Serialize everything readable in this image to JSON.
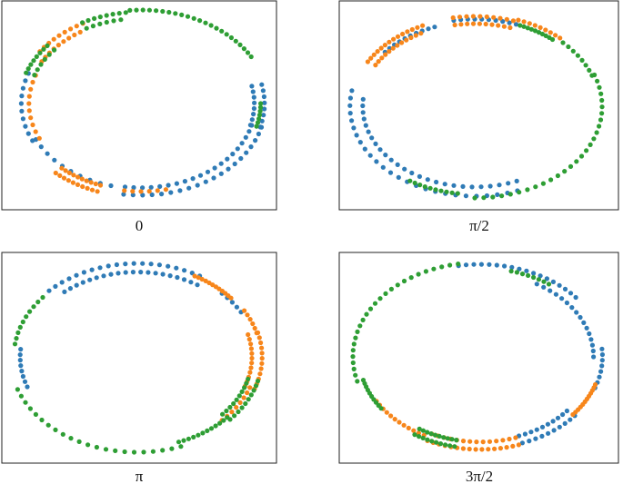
{
  "colors": {
    "blue": "#2f7bb6",
    "orange": "#f7861b",
    "green": "#2e9e34",
    "frame": "#222222"
  },
  "chart_data": [
    {
      "type": "scatter",
      "label": "0",
      "axes": "hidden",
      "series": [
        {
          "color": "blue",
          "arcs": [
            {
              "from": 160,
              "to": 205,
              "n": 10,
              "dr": -0.06,
              "dt": 0
            },
            {
              "from": 205,
              "to": 255,
              "n": 10,
              "dr": -0.09,
              "dt": 0
            },
            {
              "from": 262,
              "to": 345,
              "n": 20,
              "dr": -0.02,
              "dt": 0
            },
            {
              "from": 262,
              "to": 345,
              "n": 20,
              "dr": -0.1,
              "dt": 0
            },
            {
              "from": 345,
              "to": 372,
              "n": 8,
              "dr": -0.03,
              "dt": 0
            },
            {
              "from": 345,
              "to": 372,
              "n": 8,
              "dr": -0.11,
              "dt": 0
            }
          ]
        },
        {
          "color": "orange",
          "arcs": [
            {
              "from": 118,
              "to": 145,
              "n": 9,
              "dr": -0.03,
              "dt": 0
            },
            {
              "from": 122,
              "to": 150,
              "n": 9,
              "dr": -0.1,
              "dt": 0
            },
            {
              "from": 160,
              "to": 205,
              "n": 10,
              "dr": -0.12,
              "dt": 0
            },
            {
              "from": 228,
              "to": 250,
              "n": 10,
              "dr": 0.0,
              "dt": 0
            },
            {
              "from": 228,
              "to": 250,
              "n": 10,
              "dr": -0.07,
              "dt": 0
            },
            {
              "from": 262,
              "to": 282,
              "n": 6,
              "dr": -0.06,
              "dt": 0
            }
          ]
        },
        {
          "color": "green",
          "arcs": [
            {
              "from": 30,
              "to": 95,
              "n": 23,
              "dr": 0.0,
              "dt": 0
            },
            {
              "from": 97,
              "to": 118,
              "n": 8,
              "dr": -0.02,
              "dt": 0
            },
            {
              "from": 100,
              "to": 118,
              "n": 6,
              "dr": -0.09,
              "dt": 0
            },
            {
              "from": 140,
              "to": 160,
              "n": 8,
              "dr": -0.04,
              "dt": 0
            },
            {
              "from": 140,
              "to": 160,
              "n": 6,
              "dr": -0.11,
              "dt": 0
            },
            {
              "from": 345,
              "to": 360,
              "n": 7,
              "dr": -0.06,
              "dt": 0
            }
          ]
        }
      ]
    },
    {
      "type": "scatter",
      "label": "π/2",
      "axes": "hidden",
      "series": [
        {
          "color": "blue",
          "arcs": [
            {
              "from": 70,
              "to": 100,
              "n": 10,
              "dr": -0.05,
              "dt": 0
            },
            {
              "from": 110,
              "to": 140,
              "n": 10,
              "dr": -0.08,
              "dt": 0
            },
            {
              "from": 170,
              "to": 290,
              "n": 26,
              "dr": -0.02,
              "dt": 0
            },
            {
              "from": 175,
              "to": 292,
              "n": 26,
              "dr": -0.12,
              "dt": 0
            }
          ]
        },
        {
          "color": "orange",
          "arcs": [
            {
              "from": 48,
              "to": 70,
              "n": 9,
              "dr": 0.0,
              "dt": 0
            },
            {
              "from": 72,
              "to": 100,
              "n": 10,
              "dr": -0.02,
              "dt": 0
            },
            {
              "from": 72,
              "to": 100,
              "n": 10,
              "dr": -0.1,
              "dt": 0
            },
            {
              "from": 115,
              "to": 150,
              "n": 14,
              "dr": -0.03,
              "dt": 0
            },
            {
              "from": 118,
              "to": 150,
              "n": 12,
              "dr": -0.1,
              "dt": 0
            }
          ]
        },
        {
          "color": "green",
          "arcs": [
            {
              "from": 20,
              "to": 45,
              "n": 8,
              "dr": -0.02,
              "dt": 0
            },
            {
              "from": 50,
              "to": 68,
              "n": 10,
              "dr": -0.05,
              "dt": 0
            },
            {
              "from": -90,
              "to": 20,
              "n": 28,
              "dr": 0.0,
              "dt": 0
            },
            {
              "from": 238,
              "to": 262,
              "n": 10,
              "dr": -0.04,
              "dt": 0
            }
          ]
        }
      ]
    },
    {
      "type": "scatter",
      "label": "π",
      "axes": "hidden",
      "series": [
        {
          "color": "blue",
          "arcs": [
            {
              "from": 60,
              "to": 135,
              "n": 20,
              "dr": -0.02,
              "dt": 0
            },
            {
              "from": 58,
              "to": 130,
              "n": 20,
              "dr": -0.11,
              "dt": 0
            },
            {
              "from": 30,
              "to": 45,
              "n": 5,
              "dr": -0.06,
              "dt": 0
            },
            {
              "from": 175,
              "to": 200,
              "n": 8,
              "dr": -0.08,
              "dt": 0
            }
          ]
        },
        {
          "color": "orange",
          "arcs": [
            {
              "from": 40,
              "to": 62,
              "n": 12,
              "dr": -0.04,
              "dt": 0
            },
            {
              "from": 15,
              "to": 30,
              "n": 6,
              "dr": -0.03,
              "dt": 0
            },
            {
              "from": -20,
              "to": 15,
              "n": 12,
              "dr": -0.02,
              "dt": 0
            },
            {
              "from": -20,
              "to": 15,
              "n": 12,
              "dr": -0.1,
              "dt": 0
            },
            {
              "from": -45,
              "to": -20,
              "n": 8,
              "dr": -0.06,
              "dt": 0
            }
          ]
        },
        {
          "color": "green",
          "arcs": [
            {
              "from": 140,
              "to": 172,
              "n": 10,
              "dr": -0.03,
              "dt": 0
            },
            {
              "from": 200,
              "to": 290,
              "n": 22,
              "dr": 0.0,
              "dt": 0
            },
            {
              "from": 290,
              "to": 318,
              "n": 12,
              "dr": -0.05,
              "dt": 0
            },
            {
              "from": 318,
              "to": 345,
              "n": 10,
              "dr": -0.02,
              "dt": 0
            },
            {
              "from": 318,
              "to": 345,
              "n": 10,
              "dr": -0.1,
              "dt": 0
            }
          ]
        }
      ]
    },
    {
      "type": "scatter",
      "label": "3π/2",
      "axes": "hidden",
      "series": [
        {
          "color": "blue",
          "arcs": [
            {
              "from": 40,
              "to": 100,
              "n": 18,
              "dr": -0.02,
              "dt": 0
            },
            {
              "from": 0,
              "to": 60,
              "n": 16,
              "dr": -0.11,
              "dt": 0
            },
            {
              "from": -20,
              "to": 5,
              "n": 8,
              "dr": -0.04,
              "dt": 0
            },
            {
              "from": -70,
              "to": -40,
              "n": 10,
              "dr": -0.03,
              "dt": 0
            },
            {
              "from": -70,
              "to": -40,
              "n": 10,
              "dr": -0.11,
              "dt": 0
            }
          ]
        },
        {
          "color": "orange",
          "arcs": [
            {
              "from": -40,
              "to": -18,
              "n": 12,
              "dr": -0.05,
              "dt": 0
            },
            {
              "from": -115,
              "to": -72,
              "n": 16,
              "dr": -0.02,
              "dt": 0
            },
            {
              "from": -115,
              "to": -72,
              "n": 14,
              "dr": -0.1,
              "dt": 0
            },
            {
              "from": -150,
              "to": -118,
              "n": 12,
              "dr": -0.06,
              "dt": 0
            }
          ]
        },
        {
          "color": "green",
          "arcs": [
            {
              "from": 55,
              "to": 75,
              "n": 8,
              "dr": -0.06,
              "dt": 0
            },
            {
              "from": 100,
              "to": 195,
              "n": 26,
              "dr": 0.0,
              "dt": 0
            },
            {
              "from": 195,
              "to": 215,
              "n": 10,
              "dr": -0.05,
              "dt": 0
            },
            {
              "from": 238,
              "to": 258,
              "n": 10,
              "dr": -0.03,
              "dt": 0
            },
            {
              "from": 238,
              "to": 258,
              "n": 10,
              "dr": -0.1,
              "dt": 0
            }
          ]
        }
      ]
    }
  ]
}
